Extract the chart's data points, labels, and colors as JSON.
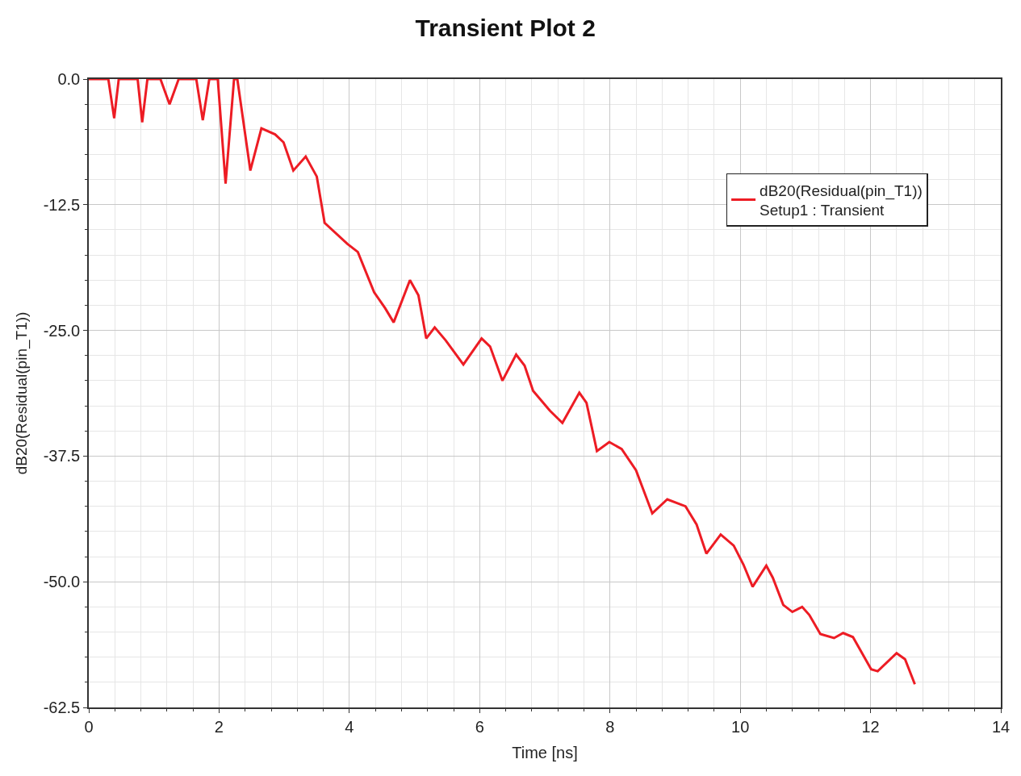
{
  "chart_data": {
    "type": "line",
    "title": "Transient Plot 2",
    "xlabel": "Time [ns]",
    "ylabel": "dB20(Residual(pin_T1))",
    "xlim": [
      0,
      14
    ],
    "xticks": [
      0,
      2,
      4,
      6,
      8,
      10,
      12,
      14
    ],
    "ylim": [
      -62.5,
      0
    ],
    "yticks": [
      {
        "value": -62.5,
        "label": "-62.5"
      },
      {
        "value": -50,
        "label": "-50.0"
      },
      {
        "value": -37.5,
        "label": "-37.5"
      },
      {
        "value": -25,
        "label": "-25.0"
      },
      {
        "value": -12.5,
        "label": "-12.5"
      },
      {
        "value": 0,
        "label": "0.0"
      }
    ],
    "grid": true,
    "legend": "top right",
    "marker": "none",
    "line_style": "solid",
    "series": [
      {
        "name": "dB20(Residual(pin_T1))\nSetup1 : Transient",
        "color": "#ed1c24",
        "x": [
          0,
          0.3,
          0.39,
          0.46,
          0.75,
          0.82,
          0.9,
          1.1,
          1.24,
          1.38,
          1.65,
          1.75,
          1.85,
          1.98,
          2.1,
          2.23,
          2.28,
          2.48,
          2.65,
          2.86,
          2.99,
          3.14,
          3.33,
          3.5,
          3.62,
          3.97,
          4.13,
          4.38,
          4.55,
          4.68,
          4.93,
          5.06,
          5.18,
          5.31,
          5.48,
          5.75,
          6.03,
          6.16,
          6.35,
          6.56,
          6.69,
          6.82,
          7.08,
          7.27,
          7.53,
          7.64,
          7.8,
          7.99,
          8.18,
          8.4,
          8.65,
          8.88,
          9.16,
          9.33,
          9.48,
          9.7,
          9.9,
          10.05,
          10.19,
          10.4,
          10.5,
          10.66,
          10.8,
          10.95,
          11.06,
          11.23,
          11.44,
          11.58,
          11.73,
          12.01,
          12.11,
          12.4,
          12.53,
          12.68
        ],
        "values": [
          0,
          0,
          -3.9,
          0,
          0,
          -4.3,
          0,
          0,
          -2.5,
          0,
          0,
          -4.1,
          0,
          0,
          -10.4,
          0,
          0,
          -9.1,
          -4.9,
          -5.5,
          -6.3,
          -9.1,
          -7.7,
          -9.7,
          -14.3,
          -16.4,
          -17.2,
          -21.2,
          -22.8,
          -24.2,
          -20.0,
          -21.5,
          -25.8,
          -24.7,
          -26.0,
          -28.4,
          -25.8,
          -26.6,
          -30.0,
          -27.4,
          -28.5,
          -31.0,
          -33.0,
          -34.2,
          -31.2,
          -32.2,
          -37.0,
          -36.1,
          -36.8,
          -38.9,
          -43.2,
          -41.8,
          -42.5,
          -44.3,
          -47.2,
          -45.3,
          -46.4,
          -48.3,
          -50.5,
          -48.4,
          -49.6,
          -52.3,
          -53.0,
          -52.5,
          -53.3,
          -55.2,
          -55.6,
          -55.1,
          -55.5,
          -58.7,
          -58.9,
          -57.1,
          -57.7,
          -60.2
        ]
      }
    ]
  }
}
